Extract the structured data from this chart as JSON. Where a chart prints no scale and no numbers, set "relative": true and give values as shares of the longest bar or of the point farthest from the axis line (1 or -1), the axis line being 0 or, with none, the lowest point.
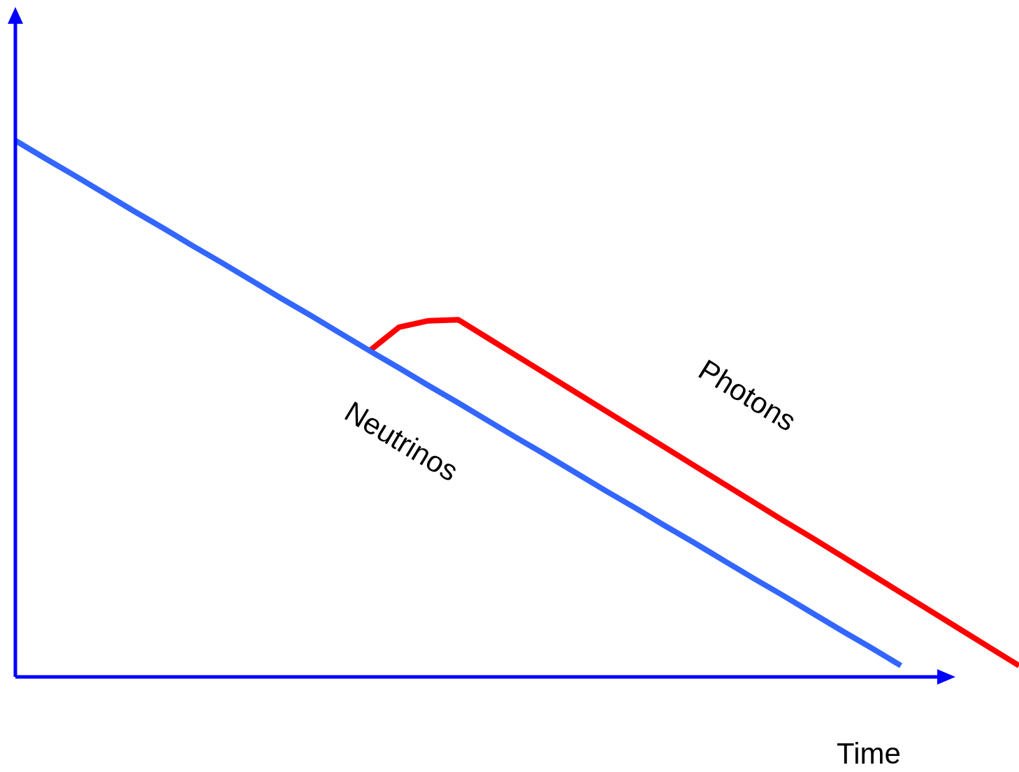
{
  "chart_data": {
    "type": "line",
    "xlabel": "Time",
    "relative": true,
    "categories": [
      null,
      null,
      null,
      null,
      null,
      null,
      null,
      null,
      null,
      null,
      null,
      null,
      null,
      null,
      null,
      null,
      null,
      null,
      null,
      null,
      null,
      null,
      null,
      null,
      null,
      null,
      null,
      null,
      null,
      null,
      null,
      null,
      null,
      null,
      null
    ],
    "series": [
      {
        "name": "Neutrinos",
        "color": "#3366ff",
        "values": [
          1,
          0.967,
          0.935,
          0.902,
          0.869,
          0.837,
          0.804,
          0.772,
          0.739,
          0.706,
          0.674,
          0.641,
          0.608,
          0.576,
          0.543,
          0.511,
          0.478,
          0.445,
          0.413,
          0.38,
          0.347,
          0.315,
          0.282,
          0.25,
          0.217,
          0.184,
          0.152,
          0.119,
          0.086,
          0.054,
          0.021,
          null,
          null,
          null,
          null
        ]
      },
      {
        "name": "Photons",
        "color": "#ff0000",
        "values": [
          null,
          null,
          null,
          null,
          null,
          null,
          null,
          null,
          null,
          null,
          null,
          null,
          0.608,
          0.652,
          0.664,
          0.666,
          0.632,
          0.598,
          0.564,
          0.53,
          0.496,
          0.462,
          0.428,
          0.394,
          0.36,
          0.326,
          0.292,
          0.259,
          0.225,
          0.191,
          0.157,
          0.123,
          0.089,
          0.055,
          0.021
        ]
      }
    ]
  }
}
